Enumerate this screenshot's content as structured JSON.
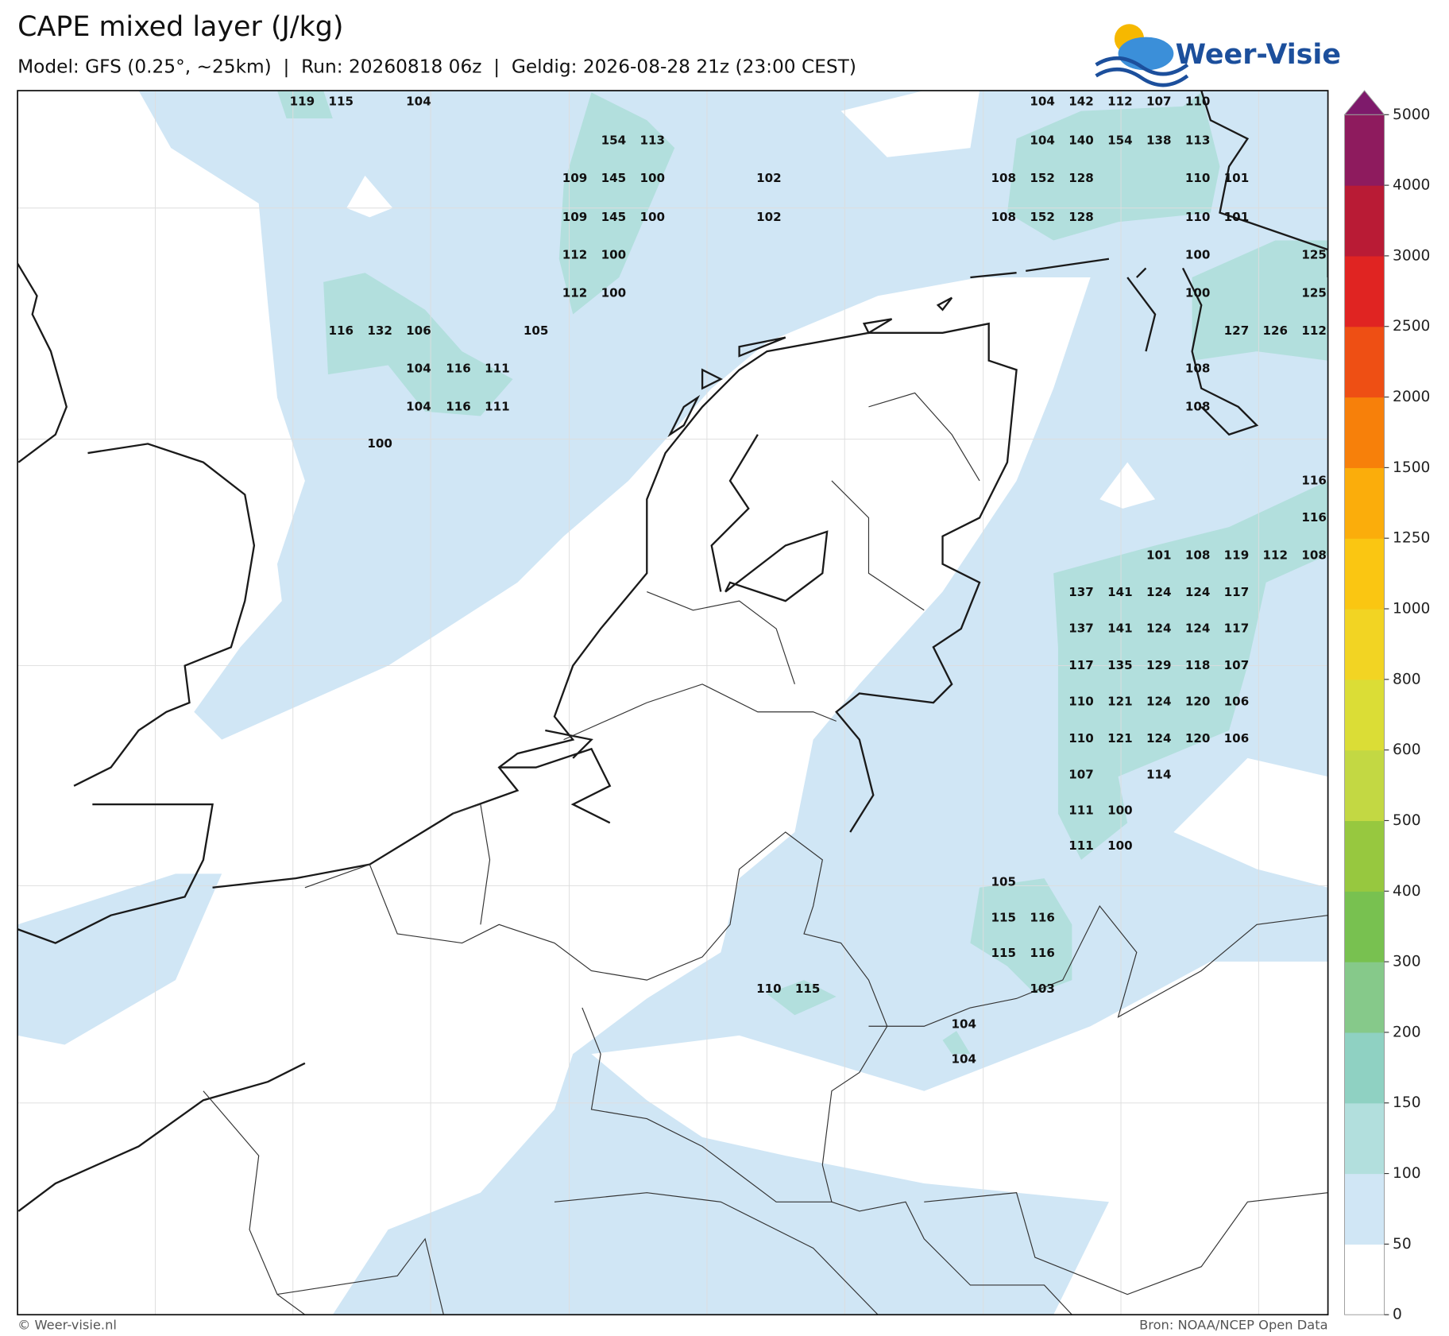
{
  "header": {
    "title": "CAPE mixed layer (J/kg)",
    "subtitle": "Model: GFS (0.25°, ~25km)  |  Run: 20260818 06z  |  Geldig: 2026-08-28 21z (23:00 CEST)"
  },
  "logo": {
    "text": "Weer-Visie"
  },
  "map_labels": [
    119,
    115,
    104,
    104,
    142,
    112,
    107,
    110,
    154,
    113,
    104,
    140,
    154,
    138,
    113,
    109,
    145,
    100,
    102,
    108,
    152,
    128,
    110,
    101,
    109,
    145,
    100,
    102,
    108,
    152,
    128,
    110,
    101,
    112,
    100,
    100,
    125,
    112,
    100,
    100,
    125,
    116,
    132,
    106,
    105,
    127,
    126,
    112,
    104,
    116,
    111,
    108,
    104,
    116,
    111,
    108,
    100,
    116,
    116,
    101,
    108,
    119,
    112,
    108,
    137,
    141,
    124,
    124,
    117,
    137,
    141,
    124,
    124,
    117,
    117,
    135,
    129,
    118,
    107,
    110,
    121,
    124,
    120,
    106,
    110,
    121,
    124,
    120,
    106,
    107,
    114,
    111,
    100,
    111,
    100,
    105,
    115,
    116,
    115,
    116,
    110,
    115,
    103,
    104,
    104
  ],
  "colorbar": {
    "ticks": [
      0,
      50,
      100,
      150,
      200,
      300,
      400,
      500,
      600,
      800,
      1000,
      1250,
      1500,
      2000,
      2500,
      3000,
      4000,
      5000
    ],
    "colors": [
      "#ffffff",
      "#d0e6f5",
      "#b2dfdd",
      "#8fd1c2",
      "#86c98a",
      "#78c150",
      "#97c83f",
      "#c3d843",
      "#dbdd36",
      "#f2d423",
      "#fac612",
      "#fbad0b",
      "#f7800a",
      "#ee4f14",
      "#e02422",
      "#b91b35",
      "#8e1b5e"
    ],
    "extend_color": "#7e1a6b"
  },
  "footer": {
    "left": "© Weer-visie.nl",
    "right": "Bron: NOAA/NCEP Open Data"
  }
}
